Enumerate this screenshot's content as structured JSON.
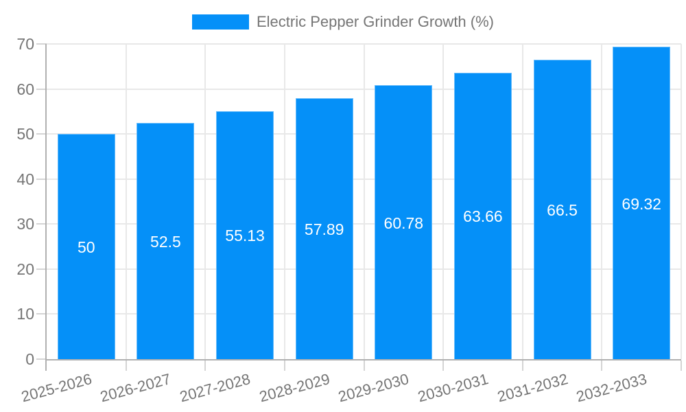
{
  "legend": {
    "label": "Electric Pepper Grinder Growth (%)"
  },
  "chart_data": {
    "type": "bar",
    "title": "Electric Pepper Grinder Growth (%)",
    "categories": [
      "2025-2026",
      "2026-2027",
      "2027-2028",
      "2028-2029",
      "2029-2030",
      "2030-2031",
      "2031-2032",
      "2032-2033"
    ],
    "values": [
      50,
      52.5,
      55.13,
      57.89,
      60.78,
      63.66,
      66.5,
      69.32
    ],
    "xlabel": "",
    "ylabel": "",
    "ylim": [
      0,
      70
    ],
    "yticks": [
      0,
      10,
      20,
      30,
      40,
      50,
      60,
      70
    ],
    "grid": "both",
    "legend_position": "top-center",
    "value_labels_inside_bars": true,
    "colors": {
      "bar": "#0590f8",
      "bar_border": "rgba(255,255,255,0.40)",
      "text": "#757575",
      "value_label": "#ffffff",
      "axis": "#b0b0b0",
      "gridline": "#e8e8e8",
      "tick": "#d4d4d4",
      "background": "#ffffff"
    }
  }
}
